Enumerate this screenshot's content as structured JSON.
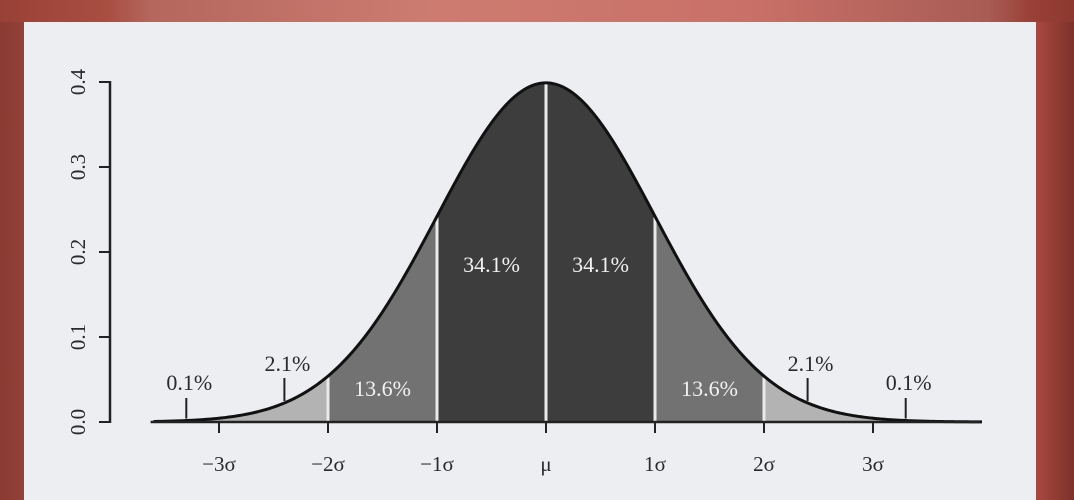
{
  "chart_data": {
    "type": "area",
    "title": "",
    "xlabel": "",
    "ylabel": "",
    "ylim": [
      0,
      0.4
    ],
    "xlim": [
      -3.6,
      4
    ],
    "y_ticks": [
      "0.0",
      "0.1",
      "0.2",
      "0.3",
      "0.4"
    ],
    "y_tick_values": [
      0,
      0.1,
      0.2,
      0.3,
      0.4
    ],
    "x_ticks": [
      "−3σ",
      "−2σ",
      "−1σ",
      "μ",
      "1σ",
      "2σ",
      "3σ"
    ],
    "x_tick_values": [
      -3,
      -2,
      -1,
      0,
      1,
      2,
      3
    ],
    "curve": "standard normal density",
    "bands": [
      {
        "from": -3.6,
        "to": -3,
        "label": "0.1%",
        "color": "#b3b3b3"
      },
      {
        "from": -3,
        "to": -2,
        "label": "2.1%",
        "color": "#b3b3b3"
      },
      {
        "from": -2,
        "to": -1,
        "label": "13.6%",
        "color": "#727272"
      },
      {
        "from": -1,
        "to": 0,
        "label": "34.1%",
        "color": "#3d3d3d"
      },
      {
        "from": 0,
        "to": 1,
        "label": "34.1%",
        "color": "#3d3d3d"
      },
      {
        "from": 1,
        "to": 2,
        "label": "13.6%",
        "color": "#727272"
      },
      {
        "from": 2,
        "to": 3,
        "label": "2.1%",
        "color": "#b3b3b3"
      },
      {
        "from": 3,
        "to": 3.6,
        "label": "0.1%",
        "color": "#b3b3b3"
      }
    ],
    "outside_labels": [
      {
        "label": "0.1%",
        "x": -3.3
      },
      {
        "label": "2.1%",
        "x": -2.4
      },
      {
        "label": "2.1%",
        "x": 2.4
      },
      {
        "label": "0.1%",
        "x": 3.3
      }
    ],
    "inside_labels": [
      {
        "label": "13.6%",
        "x": -1.5
      },
      {
        "label": "34.1%",
        "x": -0.5
      },
      {
        "label": "34.1%",
        "x": 0.5
      },
      {
        "label": "13.6%",
        "x": 1.5
      }
    ]
  }
}
